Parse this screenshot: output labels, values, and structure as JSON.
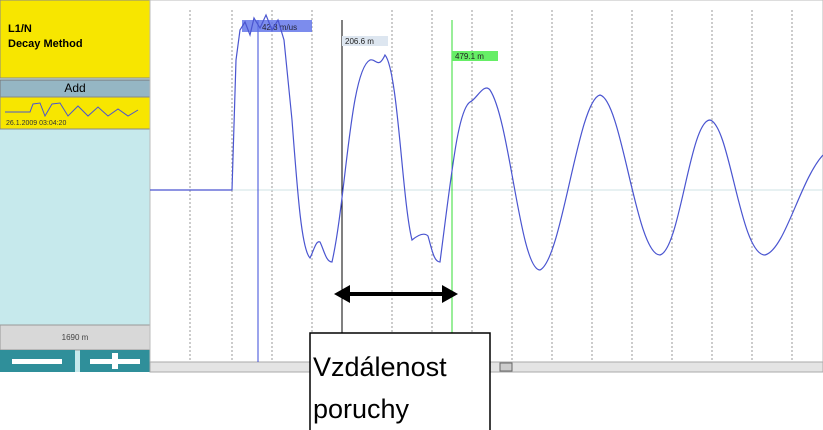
{
  "panel": {
    "channel": "L1/N",
    "method": "Decay Method",
    "add_button": "Add",
    "timestamp": "26.1.2009 03:04:20",
    "length": "1690 m"
  },
  "cursors": {
    "velocity": "42.3 m/us",
    "cursor1": "206.6 m",
    "cursor2": "479.1 m"
  },
  "annotation": {
    "line1": "Vzdálenost",
    "line2": "poruchy"
  }
}
